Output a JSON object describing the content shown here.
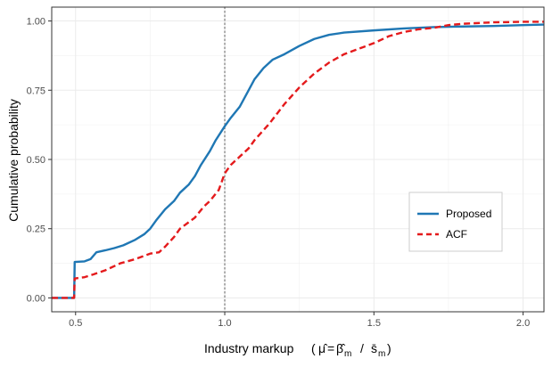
{
  "chart_data": {
    "type": "line",
    "title": "",
    "xlabel": "Industry markup",
    "xlabel_formula": {
      "mu": "μ̂",
      "eq": "=",
      "beta": "β̂",
      "sub_m": "m",
      "slash": "/",
      "s": "s̄",
      "sub_m2": "m"
    },
    "ylabel": "Cumulative probability",
    "xlim": [
      0.42,
      2.07
    ],
    "ylim": [
      -0.05,
      1.05
    ],
    "x_ticks": [
      0.5,
      1.0,
      1.5,
      2.0
    ],
    "x_tick_labels": [
      "0.5",
      "1.0",
      "1.5",
      "2.0"
    ],
    "y_ticks": [
      0.0,
      0.25,
      0.5,
      0.75,
      1.0
    ],
    "y_tick_labels": [
      "0.00",
      "0.25",
      "0.50",
      "0.75",
      "1.00"
    ],
    "vline": {
      "x": 1.0,
      "style": "dotted"
    },
    "grid": true,
    "legend_position": "right",
    "series": [
      {
        "name": "Proposed",
        "color": "#1f77b4",
        "dash": "solid",
        "points": [
          [
            0.42,
            0.0
          ],
          [
            0.495,
            0.0
          ],
          [
            0.497,
            0.13
          ],
          [
            0.53,
            0.132
          ],
          [
            0.55,
            0.14
          ],
          [
            0.57,
            0.165
          ],
          [
            0.6,
            0.172
          ],
          [
            0.63,
            0.18
          ],
          [
            0.66,
            0.19
          ],
          [
            0.7,
            0.21
          ],
          [
            0.73,
            0.23
          ],
          [
            0.75,
            0.25
          ],
          [
            0.77,
            0.28
          ],
          [
            0.8,
            0.32
          ],
          [
            0.83,
            0.35
          ],
          [
            0.85,
            0.38
          ],
          [
            0.88,
            0.41
          ],
          [
            0.9,
            0.44
          ],
          [
            0.92,
            0.48
          ],
          [
            0.95,
            0.53
          ],
          [
            0.97,
            0.57
          ],
          [
            1.0,
            0.62
          ],
          [
            1.02,
            0.65
          ],
          [
            1.05,
            0.69
          ],
          [
            1.08,
            0.75
          ],
          [
            1.1,
            0.79
          ],
          [
            1.13,
            0.83
          ],
          [
            1.16,
            0.86
          ],
          [
            1.2,
            0.88
          ],
          [
            1.25,
            0.91
          ],
          [
            1.3,
            0.935
          ],
          [
            1.35,
            0.95
          ],
          [
            1.4,
            0.958
          ],
          [
            1.5,
            0.966
          ],
          [
            1.6,
            0.973
          ],
          [
            1.7,
            0.978
          ],
          [
            1.8,
            0.98
          ],
          [
            1.9,
            0.982
          ],
          [
            2.0,
            0.985
          ],
          [
            2.07,
            0.987
          ]
        ]
      },
      {
        "name": "ACF",
        "color": "#e41a1c",
        "dash": "dashed",
        "points": [
          [
            0.42,
            0.0
          ],
          [
            0.495,
            0.0
          ],
          [
            0.497,
            0.07
          ],
          [
            0.53,
            0.075
          ],
          [
            0.56,
            0.085
          ],
          [
            0.6,
            0.1
          ],
          [
            0.65,
            0.125
          ],
          [
            0.7,
            0.14
          ],
          [
            0.75,
            0.16
          ],
          [
            0.78,
            0.165
          ],
          [
            0.8,
            0.185
          ],
          [
            0.83,
            0.22
          ],
          [
            0.85,
            0.25
          ],
          [
            0.9,
            0.29
          ],
          [
            0.93,
            0.33
          ],
          [
            0.95,
            0.35
          ],
          [
            0.98,
            0.39
          ],
          [
            1.0,
            0.45
          ],
          [
            1.02,
            0.48
          ],
          [
            1.05,
            0.51
          ],
          [
            1.08,
            0.54
          ],
          [
            1.1,
            0.57
          ],
          [
            1.15,
            0.63
          ],
          [
            1.2,
            0.7
          ],
          [
            1.25,
            0.76
          ],
          [
            1.3,
            0.81
          ],
          [
            1.35,
            0.85
          ],
          [
            1.4,
            0.88
          ],
          [
            1.45,
            0.9
          ],
          [
            1.5,
            0.92
          ],
          [
            1.55,
            0.945
          ],
          [
            1.6,
            0.96
          ],
          [
            1.65,
            0.97
          ],
          [
            1.7,
            0.975
          ],
          [
            1.75,
            0.985
          ],
          [
            1.8,
            0.99
          ],
          [
            1.9,
            0.995
          ],
          [
            2.0,
            0.997
          ],
          [
            2.07,
            0.997
          ]
        ]
      }
    ]
  }
}
